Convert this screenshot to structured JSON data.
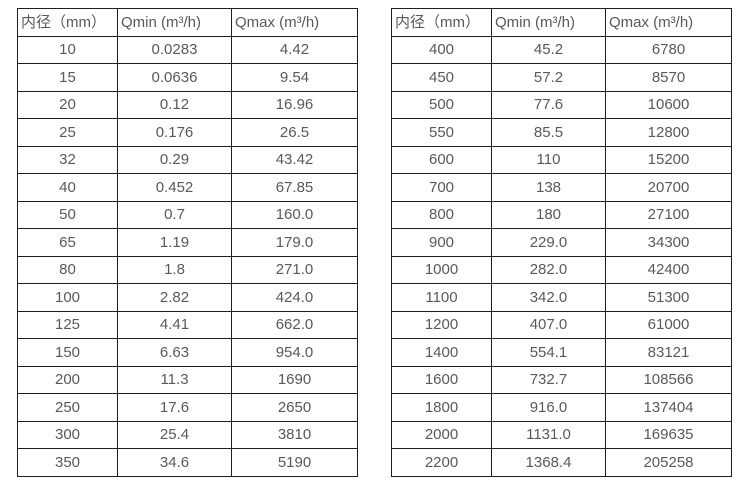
{
  "tables": [
    {
      "name": "flow-table-small-diameters",
      "headers": [
        "内径（mm）",
        "Qmin (m³/h)",
        "Qmax (m³/h)"
      ],
      "rows": [
        [
          "10",
          "0.0283",
          "4.42"
        ],
        [
          "15",
          "0.0636",
          "9.54"
        ],
        [
          "20",
          "0.12",
          "16.96"
        ],
        [
          "25",
          "0.176",
          "26.5"
        ],
        [
          "32",
          "0.29",
          "43.42"
        ],
        [
          "40",
          "0.452",
          "67.85"
        ],
        [
          "50",
          "0.7",
          "160.0"
        ],
        [
          "65",
          "1.19",
          "179.0"
        ],
        [
          "80",
          "1.8",
          "271.0"
        ],
        [
          "100",
          "2.82",
          "424.0"
        ],
        [
          "125",
          "4.41",
          "662.0"
        ],
        [
          "150",
          "6.63",
          "954.0"
        ],
        [
          "200",
          "11.3",
          "1690"
        ],
        [
          "250",
          "17.6",
          "2650"
        ],
        [
          "300",
          "25.4",
          "3810"
        ],
        [
          "350",
          "34.6",
          "5190"
        ]
      ]
    },
    {
      "name": "flow-table-large-diameters",
      "headers": [
        "内径（mm）",
        "Qmin (m³/h)",
        "Qmax (m³/h)"
      ],
      "rows": [
        [
          "400",
          "45.2",
          "6780"
        ],
        [
          "450",
          "57.2",
          "8570"
        ],
        [
          "500",
          "77.6",
          "10600"
        ],
        [
          "550",
          "85.5",
          "12800"
        ],
        [
          "600",
          "110",
          "15200"
        ],
        [
          "700",
          "138",
          "20700"
        ],
        [
          "800",
          "180",
          "27100"
        ],
        [
          "900",
          "229.0",
          "34300"
        ],
        [
          "1000",
          "282.0",
          "42400"
        ],
        [
          "1100",
          "342.0",
          "51300"
        ],
        [
          "1200",
          "407.0",
          "61000"
        ],
        [
          "1400",
          "554.1",
          "83121"
        ],
        [
          "1600",
          "732.7",
          "108566"
        ],
        [
          "1800",
          "916.0",
          "137404"
        ],
        [
          "2000",
          "1131.0",
          "169635"
        ],
        [
          "2200",
          "1368.4",
          "205258"
        ]
      ]
    }
  ],
  "colors": {
    "text": "#595959",
    "border": "#1f1f1f",
    "background": "#ffffff"
  }
}
